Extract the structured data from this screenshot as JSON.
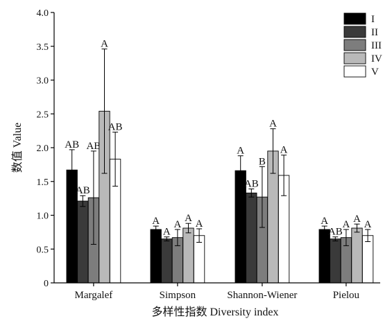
{
  "chart_data": {
    "type": "bar",
    "xlabel": "多样性指数 Diversity index",
    "ylabel": "数值 Value",
    "ylim": [
      0,
      4.0
    ],
    "yticks": [
      "0",
      "0.5",
      "1.0",
      "1.5",
      "2.0",
      "2.5",
      "3.0",
      "3.5",
      "4.0"
    ],
    "categories": [
      "Margalef",
      "Simpson",
      "Shannon-Wiener",
      "Pielou"
    ],
    "legend_position": "top-right",
    "series": [
      {
        "name": "I",
        "color": "#000000",
        "values": [
          1.67,
          0.79,
          1.66,
          0.79
        ],
        "errors": [
          0.3,
          0.05,
          0.22,
          0.05
        ],
        "labels": [
          "AB",
          "A",
          "A",
          "A"
        ]
      },
      {
        "name": "II",
        "color": "#3a3a3a",
        "values": [
          1.21,
          0.65,
          1.33,
          0.65
        ],
        "errors": [
          0.08,
          0.03,
          0.06,
          0.03
        ],
        "labels": [
          "AB",
          "A",
          "AB",
          "AB"
        ]
      },
      {
        "name": "III",
        "color": "#7d7d7d",
        "values": [
          1.26,
          0.67,
          1.27,
          0.67
        ],
        "errors": [
          0.69,
          0.12,
          0.45,
          0.12
        ],
        "labels": [
          "AB",
          "A",
          "B",
          "A"
        ]
      },
      {
        "name": "IV",
        "color": "#b9b9b9",
        "values": [
          2.54,
          0.81,
          1.95,
          0.81
        ],
        "errors": [
          0.92,
          0.07,
          0.33,
          0.06
        ],
        "labels": [
          "A",
          "A",
          "A",
          "A"
        ]
      },
      {
        "name": "V",
        "color": "#ffffff",
        "values": [
          1.83,
          0.7,
          1.59,
          0.7
        ],
        "errors": [
          0.4,
          0.1,
          0.3,
          0.09
        ],
        "labels": [
          "AB",
          "A",
          "A",
          "A"
        ]
      }
    ]
  }
}
